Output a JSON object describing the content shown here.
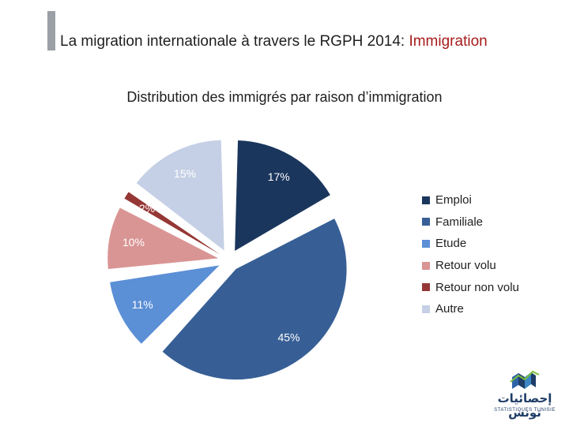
{
  "slide": {
    "title_main": "La migration internationale à travers le RGPH 2014: ",
    "title_accent": "Immigration"
  },
  "chart_data": {
    "type": "pie",
    "title": "Distribution des immigrés par raison d’immigration",
    "slices": [
      {
        "label": "Emploi",
        "value": 17,
        "display": "17%",
        "color": "#1b365d"
      },
      {
        "label": "Familiale",
        "value": 45,
        "display": "45%",
        "color": "#375f96"
      },
      {
        "label": "Etude",
        "value": 11,
        "display": "11%",
        "color": "#5b8fd6"
      },
      {
        "label": "Retour volu",
        "value": 10,
        "display": "10%",
        "color": "#d99594"
      },
      {
        "label": "Retour non volu",
        "value": 2,
        "display": "2%",
        "color": "#953735"
      },
      {
        "label": "Autre",
        "value": 15,
        "display": "15%",
        "color": "#c5d0e6"
      }
    ],
    "legend_position": "right",
    "exploded": true
  },
  "logo": {
    "arabic_text": "إحصائيات تونس",
    "french_text": "STATISTIQUES TUNISIE",
    "icon": "chart-logo-icon"
  }
}
